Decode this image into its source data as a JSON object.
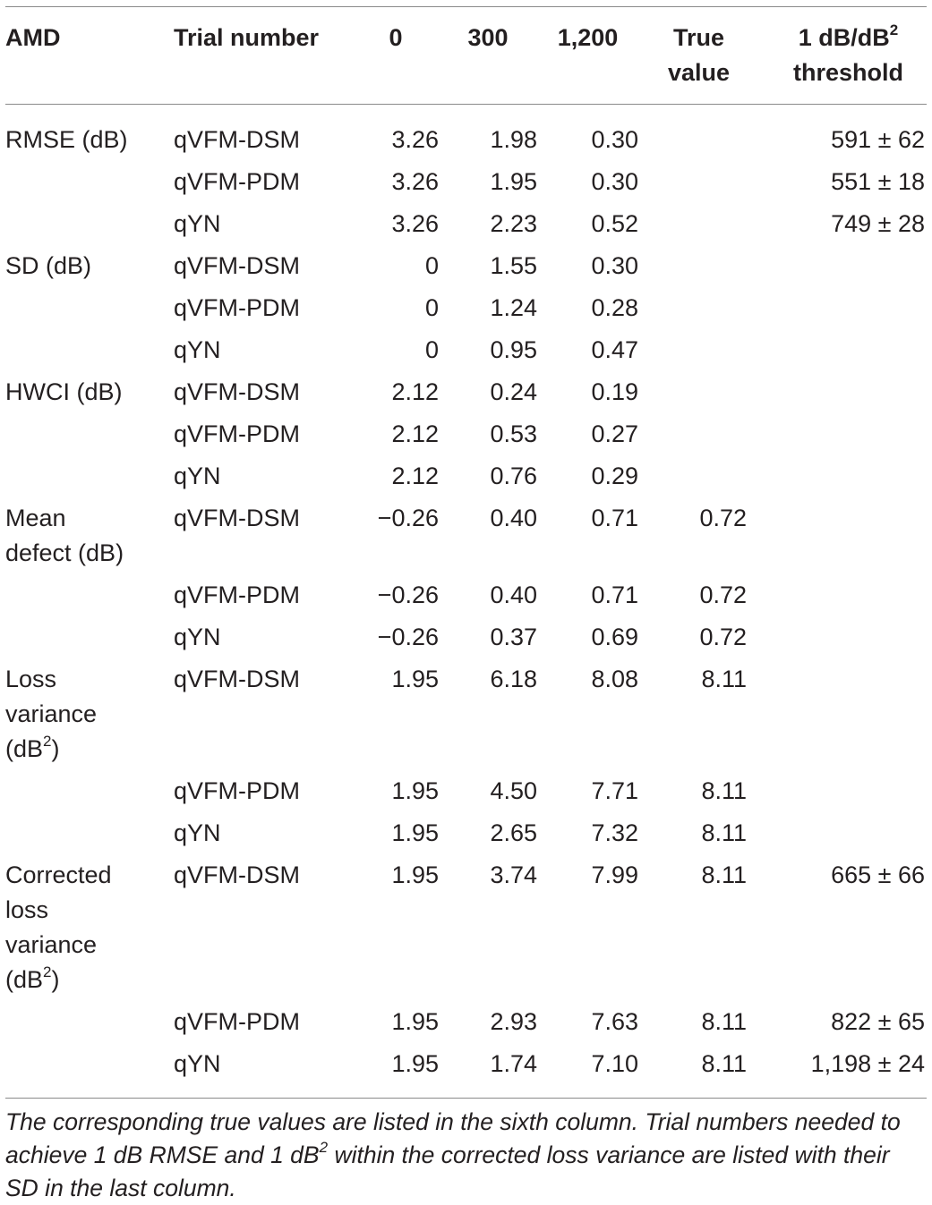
{
  "table": {
    "headers": {
      "metric": "AMD",
      "method": "Trial number",
      "t0": "0",
      "t300": "300",
      "t1200": "1,200",
      "true_value_line1": "True",
      "true_value_line2": "value",
      "threshold_line1_pre": "1 dB/dB",
      "threshold_line1_sup": "2",
      "threshold_line2": "threshold"
    },
    "groups": [
      {
        "metric": "RMSE (dB)",
        "rows": [
          {
            "method": "qVFM-DSM",
            "t0": "3.26",
            "t300": "1.98",
            "t1200": "0.30",
            "true": "",
            "threshold": "591 ± 62"
          },
          {
            "method": "qVFM-PDM",
            "t0": "3.26",
            "t300": "1.95",
            "t1200": "0.30",
            "true": "",
            "threshold": "551 ± 18"
          },
          {
            "method": "qYN",
            "t0": "3.26",
            "t300": "2.23",
            "t1200": "0.52",
            "true": "",
            "threshold": "749 ± 28"
          }
        ]
      },
      {
        "metric": "SD (dB)",
        "rows": [
          {
            "method": "qVFM-DSM",
            "t0": "0",
            "t300": "1.55",
            "t1200": "0.30",
            "true": "",
            "threshold": ""
          },
          {
            "method": "qVFM-PDM",
            "t0": "0",
            "t300": "1.24",
            "t1200": "0.28",
            "true": "",
            "threshold": ""
          },
          {
            "method": "qYN",
            "t0": "0",
            "t300": "0.95",
            "t1200": "0.47",
            "true": "",
            "threshold": ""
          }
        ]
      },
      {
        "metric": "HWCI (dB)",
        "rows": [
          {
            "method": "qVFM-DSM",
            "t0": "2.12",
            "t300": "0.24",
            "t1200": "0.19",
            "true": "",
            "threshold": ""
          },
          {
            "method": "qVFM-PDM",
            "t0": "2.12",
            "t300": "0.53",
            "t1200": "0.27",
            "true": "",
            "threshold": ""
          },
          {
            "method": "qYN",
            "t0": "2.12",
            "t300": "0.76",
            "t1200": "0.29",
            "true": "",
            "threshold": ""
          }
        ]
      },
      {
        "metric_lines": [
          "Mean",
          "defect (dB)"
        ],
        "rows": [
          {
            "method": "qVFM-DSM",
            "t0": "−0.26",
            "t300": "0.40",
            "t1200": "0.71",
            "true": "0.72",
            "threshold": ""
          },
          {
            "method": "qVFM-PDM",
            "t0": "−0.26",
            "t300": "0.40",
            "t1200": "0.71",
            "true": "0.72",
            "threshold": ""
          },
          {
            "method": "qYN",
            "t0": "−0.26",
            "t300": "0.37",
            "t1200": "0.69",
            "true": "0.72",
            "threshold": ""
          }
        ]
      },
      {
        "metric_lines": [
          "Loss",
          "variance",
          "(dB"
        ],
        "metric_sup": "2",
        "metric_tail": ")",
        "rows": [
          {
            "method": "qVFM-DSM",
            "t0": "1.95",
            "t300": "6.18",
            "t1200": "8.08",
            "true": "8.11",
            "threshold": ""
          },
          {
            "method": "qVFM-PDM",
            "t0": "1.95",
            "t300": "4.50",
            "t1200": "7.71",
            "true": "8.11",
            "threshold": ""
          },
          {
            "method": "qYN",
            "t0": "1.95",
            "t300": "2.65",
            "t1200": "7.32",
            "true": "8.11",
            "threshold": ""
          }
        ]
      },
      {
        "metric_lines": [
          "Corrected",
          "loss",
          "variance",
          "(dB"
        ],
        "metric_sup": "2",
        "metric_tail": ")",
        "rows": [
          {
            "method": "qVFM-DSM",
            "t0": "1.95",
            "t300": "3.74",
            "t1200": "7.99",
            "true": "8.11",
            "threshold": "665 ± 66"
          },
          {
            "method": "qVFM-PDM",
            "t0": "1.95",
            "t300": "2.93",
            "t1200": "7.63",
            "true": "8.11",
            "threshold": "822 ± 65"
          },
          {
            "method": "qYN",
            "t0": "1.95",
            "t300": "1.74",
            "t1200": "7.10",
            "true": "8.11",
            "threshold": "1,198 ± 24"
          }
        ]
      }
    ]
  },
  "footnote": {
    "part1": "The corresponding true values are listed in the sixth column. Trial numbers needed to achieve 1 dB RMSE and 1 dB",
    "sup": "2",
    "part2": " within the corrected loss variance are listed with their SD in the last column."
  }
}
